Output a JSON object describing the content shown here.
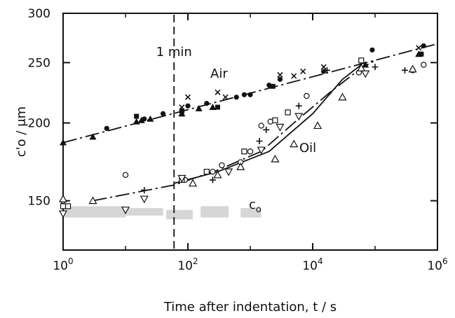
{
  "chart_data": {
    "type": "scatter",
    "xscale": "log",
    "yscale": "log",
    "xlim": [
      1,
      1000000
    ],
    "ylim": [
      125,
      300
    ],
    "xlabel": "Time after indentation, t / s",
    "ylabel": "c'o / μm",
    "grid": false,
    "x_ticks": [
      {
        "value": 1,
        "base": "10",
        "exp": "0"
      },
      {
        "value": 100,
        "base": "10",
        "exp": "2"
      },
      {
        "value": 10000,
        "base": "10",
        "exp": "4"
      },
      {
        "value": 1000000,
        "base": "10",
        "exp": "6"
      }
    ],
    "y_ticks": [
      {
        "value": 150,
        "label": "150"
      },
      {
        "value": 200,
        "label": "200"
      },
      {
        "value": 250,
        "label": "250"
      },
      {
        "value": 300,
        "label": "300"
      }
    ],
    "annotations": {
      "vline": {
        "x": 60,
        "label": "1 min"
      },
      "air_label": "Air",
      "oil_label": "Oil",
      "c0_label": "c",
      "c0_sub": "o"
    },
    "fit_lines": [
      {
        "name": "Air",
        "style": "dash-dot",
        "points": [
          [
            1,
            186
          ],
          [
            1000000,
            268
          ]
        ]
      },
      {
        "name": "",
        "style": "dash-dot",
        "points": [
          [
            3,
            150
          ],
          [
            60,
            159
          ],
          [
            300,
            168
          ],
          [
            1500,
            180
          ],
          [
            5000,
            200
          ],
          [
            20000,
            225
          ],
          [
            60000,
            245
          ],
          [
            100000,
            252
          ]
        ]
      },
      {
        "name": "Oil",
        "style": "solid",
        "points": [
          [
            60,
            160
          ],
          [
            300,
            167
          ],
          [
            2000,
            180
          ],
          [
            10000,
            207
          ],
          [
            30000,
            235
          ],
          [
            60000,
            248
          ]
        ]
      }
    ],
    "c0_band": [
      {
        "x0": 1,
        "x1": 10,
        "y0": 141,
        "y1": 147
      },
      {
        "x0": 10,
        "x1": 40,
        "y0": 142,
        "y1": 146
      },
      {
        "x0": 45,
        "x1": 120,
        "y0": 140,
        "y1": 145
      },
      {
        "x0": 160,
        "x1": 450,
        "y0": 141,
        "y1": 147
      },
      {
        "x0": 700,
        "x1": 1500,
        "y0": 141,
        "y1": 146
      }
    ],
    "series": [
      {
        "name": "",
        "marker": "filled-circle",
        "points": [
          [
            5,
            196
          ],
          [
            20,
            203
          ],
          [
            40,
            207
          ],
          [
            100,
            213
          ],
          [
            200,
            215
          ],
          [
            600,
            220
          ],
          [
            800,
            222
          ],
          [
            1000,
            222
          ],
          [
            2000,
            230
          ],
          [
            3000,
            235
          ],
          [
            15000,
            242
          ],
          [
            90000,
            262
          ],
          [
            600000,
            266
          ]
        ]
      },
      {
        "name": "",
        "marker": "filled-triangle",
        "points": [
          [
            1,
            186
          ],
          [
            3,
            190
          ],
          [
            15,
            201
          ],
          [
            18,
            202
          ],
          [
            25,
            203
          ],
          [
            80,
            207
          ],
          [
            150,
            211
          ],
          [
            250,
            212
          ],
          [
            70000,
            248
          ],
          [
            500000,
            258
          ]
        ]
      },
      {
        "name": "",
        "marker": "filled-square",
        "points": [
          [
            15,
            205
          ],
          [
            80,
            209
          ],
          [
            300,
            212
          ],
          [
            2300,
            229
          ],
          [
            550000,
            258
          ]
        ]
      },
      {
        "name": "",
        "marker": "cross-x",
        "points": [
          [
            80,
            212
          ],
          [
            100,
            220
          ],
          [
            300,
            224
          ],
          [
            400,
            220
          ],
          [
            3000,
            239
          ],
          [
            5000,
            238
          ],
          [
            7000,
            242
          ],
          [
            15000,
            246
          ],
          [
            500000,
            264
          ]
        ]
      },
      {
        "name": "",
        "marker": "plus",
        "points": [
          [
            20,
            156
          ],
          [
            250,
            162
          ],
          [
            1400,
            187
          ],
          [
            1800,
            195
          ],
          [
            6000,
            213
          ],
          [
            17000,
            243
          ],
          [
            60000,
            246
          ],
          [
            100000,
            246
          ],
          [
            300000,
            243
          ]
        ]
      },
      {
        "name": "",
        "marker": "open-circle",
        "points": [
          [
            1,
            150
          ],
          [
            10,
            165
          ],
          [
            90,
            162
          ],
          [
            250,
            167
          ],
          [
            350,
            171
          ],
          [
            700,
            173
          ],
          [
            1000,
            180
          ],
          [
            1500,
            198
          ],
          [
            2100,
            201
          ],
          [
            8000,
            221
          ],
          [
            55000,
            241
          ],
          [
            400000,
            243
          ],
          [
            600000,
            248
          ]
        ]
      },
      {
        "name": "",
        "marker": "open-square",
        "points": [
          [
            1,
            147
          ],
          [
            1.2,
            147
          ],
          [
            80,
            162
          ],
          [
            200,
            167
          ],
          [
            800,
            180
          ],
          [
            2500,
            202
          ],
          [
            4000,
            208
          ],
          [
            60000,
            252
          ]
        ]
      },
      {
        "name": "",
        "marker": "open-triangle-up",
        "points": [
          [
            1,
            151
          ],
          [
            3,
            150
          ],
          [
            120,
            160
          ],
          [
            300,
            165
          ],
          [
            700,
            170
          ],
          [
            2500,
            175
          ],
          [
            5000,
            185
          ],
          [
            12000,
            198
          ],
          [
            30000,
            220
          ],
          [
            60000,
            245
          ],
          [
            400000,
            244
          ]
        ]
      },
      {
        "name": "",
        "marker": "open-triangle-down",
        "points": [
          [
            1,
            143
          ],
          [
            10,
            145
          ],
          [
            20,
            151
          ],
          [
            80,
            163
          ],
          [
            450,
            167
          ],
          [
            1500,
            181
          ],
          [
            3000,
            197
          ],
          [
            6000,
            205
          ],
          [
            70000,
            240
          ]
        ]
      }
    ]
  }
}
